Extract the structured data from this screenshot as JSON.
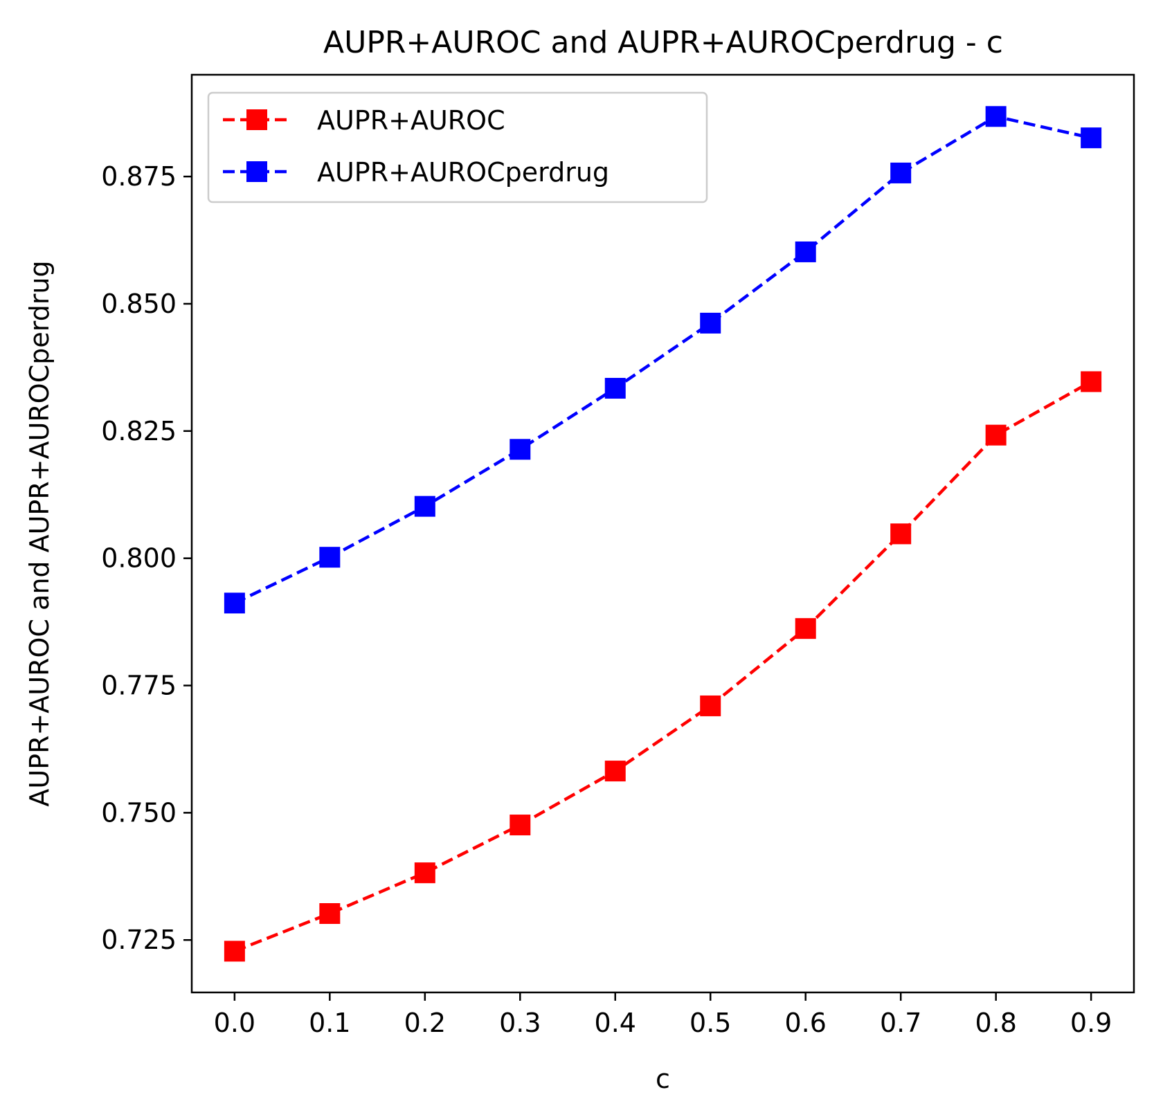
{
  "chart_data": {
    "type": "line",
    "title": "AUPR+AUROC and AUPR+AUROCperdrug - c",
    "xlabel": "c",
    "ylabel": "AUPR+AUROC and AUPR+AUROCperdrug",
    "x": [
      0.0,
      0.1,
      0.2,
      0.3,
      0.4,
      0.5,
      0.6,
      0.7,
      0.8,
      0.9
    ],
    "x_tick_labels": [
      "0.0",
      "0.1",
      "0.2",
      "0.3",
      "0.4",
      "0.5",
      "0.6",
      "0.7",
      "0.8",
      "0.9"
    ],
    "y_ticks": [
      0.725,
      0.75,
      0.775,
      0.8,
      0.825,
      0.85,
      0.875
    ],
    "y_tick_labels": [
      "0.725",
      "0.750",
      "0.775",
      "0.800",
      "0.825",
      "0.850",
      "0.875"
    ],
    "xlim": [
      -0.045,
      0.945
    ],
    "ylim": [
      0.7147,
      0.895
    ],
    "grid": false,
    "legend_position": "upper-left",
    "series": [
      {
        "name": "AUPR+AUROC",
        "color": "#ff0000",
        "line_style": "dashed",
        "marker": "square",
        "values": [
          0.7228,
          0.7302,
          0.7382,
          0.7476,
          0.7582,
          0.771,
          0.7862,
          0.8048,
          0.8242,
          0.8347
        ]
      },
      {
        "name": "AUPR+AUROCperdrug",
        "color": "#0000ff",
        "line_style": "dashed",
        "marker": "square",
        "values": [
          0.7912,
          0.8002,
          0.8102,
          0.8214,
          0.8334,
          0.8462,
          0.8602,
          0.8757,
          0.8868,
          0.8826
        ]
      }
    ]
  }
}
